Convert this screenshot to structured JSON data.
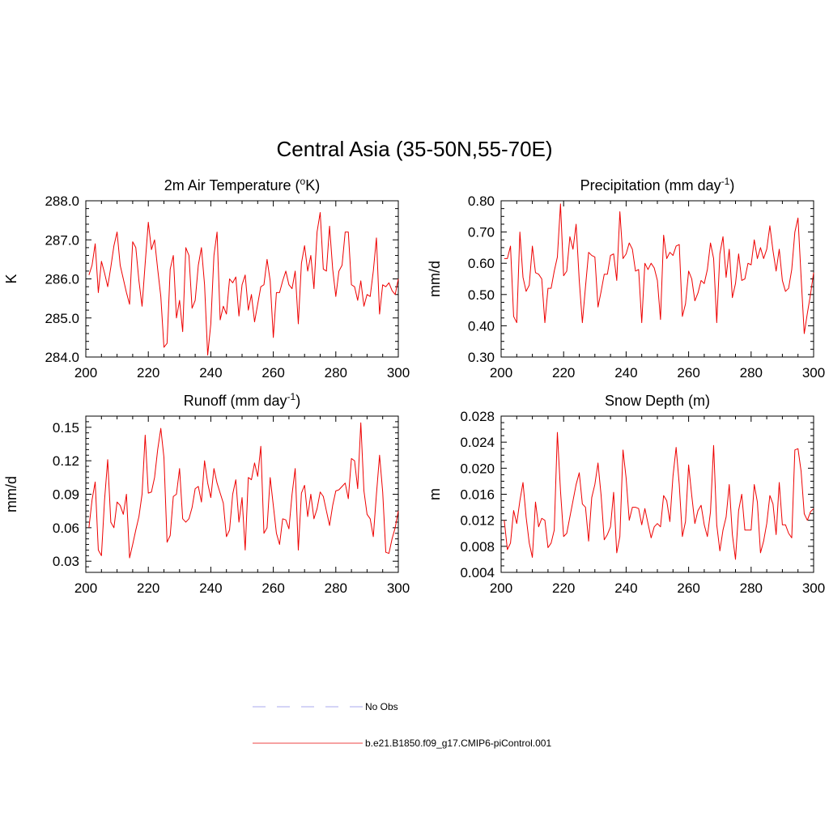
{
  "figure": {
    "title": "Central Asia (35-50N,55-70E)"
  },
  "legend": {
    "items": [
      {
        "label": "No Obs",
        "color": "#aaaaee",
        "style": "dashed"
      },
      {
        "label": "b.e21.B1850.f09_g17.CMIP6-piControl.001",
        "color": "#ee4444",
        "style": "solid"
      }
    ]
  },
  "chart_data": [
    {
      "type": "line",
      "title": "2m Air Temperature (",
      "title_sup": "o",
      "title_tail": "K)",
      "ylabel": "K",
      "xlim": [
        200,
        300
      ],
      "ylim": [
        284.0,
        288.0
      ],
      "xticks": [
        200,
        220,
        240,
        260,
        280,
        300
      ],
      "xtick_labels": [
        "200",
        "220",
        "240",
        "260",
        "280",
        "300"
      ],
      "yticks": [
        284.0,
        285.0,
        286.0,
        287.0,
        288.0
      ],
      "ytick_labels": [
        "284.0",
        "285.0",
        "286.0",
        "287.0",
        "288.0"
      ],
      "series": [
        {
          "color": "#ee0000",
          "x_start": 201,
          "values": [
            286.1,
            286.35,
            286.9,
            285.65,
            286.45,
            286.15,
            285.8,
            286.3,
            286.85,
            287.2,
            286.35,
            286.0,
            285.65,
            285.35,
            286.95,
            286.8,
            285.95,
            285.3,
            286.4,
            287.45,
            286.75,
            287.0,
            286.25,
            285.55,
            284.25,
            284.35,
            286.25,
            286.6,
            285.0,
            285.45,
            284.65,
            286.8,
            286.6,
            285.25,
            285.45,
            286.35,
            286.8,
            285.85,
            284.05,
            284.85,
            286.6,
            287.2,
            284.95,
            285.3,
            285.1,
            286.0,
            285.9,
            286.05,
            285.05,
            285.85,
            286.1,
            285.2,
            285.6,
            284.9,
            285.35,
            285.8,
            285.85,
            286.5,
            285.95,
            284.5,
            285.65,
            285.65,
            285.95,
            286.2,
            285.85,
            285.75,
            286.2,
            284.85,
            286.4,
            286.85,
            286.2,
            286.6,
            285.75,
            287.2,
            287.7,
            286.25,
            286.2,
            287.35,
            286.25,
            285.55,
            286.2,
            286.35,
            287.2,
            287.2,
            285.85,
            285.8,
            285.45,
            285.95,
            285.3,
            285.6,
            285.55,
            286.2,
            287.05,
            285.1,
            285.85,
            285.8,
            285.9,
            285.7,
            285.6,
            286.0
          ]
        }
      ]
    },
    {
      "type": "line",
      "title": "Precipitation (mm day",
      "title_sup": "-1",
      "title_tail": ")",
      "ylabel": "mm/d",
      "xlim": [
        200,
        300
      ],
      "ylim": [
        0.3,
        0.8
      ],
      "xticks": [
        200,
        220,
        240,
        260,
        280,
        300
      ],
      "xtick_labels": [
        "200",
        "220",
        "240",
        "260",
        "280",
        "300"
      ],
      "yticks": [
        0.3,
        0.4,
        0.5,
        0.6,
        0.7,
        0.8
      ],
      "ytick_labels": [
        "0.30",
        "0.40",
        "0.50",
        "0.60",
        "0.70",
        "0.80"
      ],
      "series": [
        {
          "color": "#ee0000",
          "x_start": 201,
          "values": [
            0.615,
            0.615,
            0.655,
            0.43,
            0.41,
            0.7,
            0.555,
            0.51,
            0.53,
            0.655,
            0.57,
            0.565,
            0.55,
            0.41,
            0.52,
            0.52,
            0.575,
            0.62,
            0.79,
            0.56,
            0.575,
            0.685,
            0.645,
            0.725,
            0.545,
            0.41,
            0.525,
            0.635,
            0.625,
            0.62,
            0.46,
            0.51,
            0.565,
            0.565,
            0.625,
            0.63,
            0.545,
            0.765,
            0.615,
            0.63,
            0.665,
            0.645,
            0.575,
            0.58,
            0.41,
            0.6,
            0.58,
            0.6,
            0.585,
            0.545,
            0.42,
            0.69,
            0.615,
            0.635,
            0.625,
            0.655,
            0.66,
            0.43,
            0.47,
            0.575,
            0.55,
            0.48,
            0.505,
            0.545,
            0.535,
            0.58,
            0.665,
            0.615,
            0.41,
            0.63,
            0.685,
            0.555,
            0.645,
            0.49,
            0.535,
            0.63,
            0.545,
            0.55,
            0.6,
            0.595,
            0.675,
            0.615,
            0.65,
            0.615,
            0.645,
            0.72,
            0.64,
            0.575,
            0.645,
            0.545,
            0.51,
            0.52,
            0.58,
            0.7,
            0.745,
            0.555,
            0.375,
            0.44,
            0.5,
            0.57
          ]
        }
      ]
    },
    {
      "type": "line",
      "title": "Runoff (mm day",
      "title_sup": "-1",
      "title_tail": ")",
      "ylabel": "mm/d",
      "xlim": [
        200,
        300
      ],
      "ylim": [
        0.02,
        0.16
      ],
      "xticks": [
        200,
        220,
        240,
        260,
        280,
        300
      ],
      "xtick_labels": [
        "200",
        "220",
        "240",
        "260",
        "280",
        "300"
      ],
      "yticks": [
        0.03,
        0.06,
        0.09,
        0.12,
        0.15
      ],
      "ytick_labels": [
        "0.03",
        "0.06",
        "0.09",
        "0.12",
        "0.15"
      ],
      "series": [
        {
          "color": "#ee0000",
          "x_start": 201,
          "values": [
            0.06,
            0.085,
            0.101,
            0.04,
            0.035,
            0.085,
            0.121,
            0.065,
            0.06,
            0.083,
            0.08,
            0.072,
            0.09,
            0.033,
            0.045,
            0.058,
            0.07,
            0.09,
            0.143,
            0.091,
            0.092,
            0.105,
            0.13,
            0.149,
            0.123,
            0.047,
            0.053,
            0.088,
            0.09,
            0.113,
            0.068,
            0.065,
            0.068,
            0.078,
            0.095,
            0.097,
            0.083,
            0.12,
            0.1,
            0.087,
            0.113,
            0.1,
            0.091,
            0.082,
            0.052,
            0.058,
            0.09,
            0.103,
            0.065,
            0.087,
            0.04,
            0.105,
            0.103,
            0.118,
            0.106,
            0.133,
            0.055,
            0.06,
            0.105,
            0.08,
            0.055,
            0.045,
            0.068,
            0.067,
            0.059,
            0.09,
            0.113,
            0.04,
            0.091,
            0.098,
            0.07,
            0.09,
            0.068,
            0.077,
            0.092,
            0.088,
            0.075,
            0.062,
            0.08,
            0.093,
            0.094,
            0.097,
            0.1,
            0.086,
            0.122,
            0.12,
            0.095,
            0.154,
            0.093,
            0.072,
            0.068,
            0.052,
            0.09,
            0.125,
            0.092,
            0.038,
            0.037,
            0.05,
            0.06,
            0.075
          ]
        }
      ]
    },
    {
      "type": "line",
      "title": "Snow Depth (m)",
      "title_sup": "",
      "title_tail": "",
      "ylabel": "m",
      "xlim": [
        200,
        300
      ],
      "ylim": [
        0.004,
        0.028
      ],
      "xticks": [
        200,
        220,
        240,
        260,
        280,
        300
      ],
      "xtick_labels": [
        "200",
        "220",
        "240",
        "260",
        "280",
        "300"
      ],
      "yticks": [
        0.004,
        0.008,
        0.012,
        0.016,
        0.02,
        0.024,
        0.028
      ],
      "ytick_labels": [
        "0.004",
        "0.008",
        "0.012",
        "0.016",
        "0.020",
        "0.024",
        "0.028"
      ],
      "series": [
        {
          "color": "#ee0000",
          "x_start": 201,
          "values": [
            0.012,
            0.0075,
            0.0085,
            0.0135,
            0.0115,
            0.015,
            0.0178,
            0.0125,
            0.0085,
            0.0063,
            0.0148,
            0.011,
            0.0123,
            0.012,
            0.0078,
            0.0085,
            0.0105,
            0.0255,
            0.0165,
            0.0095,
            0.01,
            0.0125,
            0.015,
            0.0175,
            0.0193,
            0.0145,
            0.014,
            0.0088,
            0.0155,
            0.0175,
            0.0208,
            0.0158,
            0.009,
            0.0098,
            0.011,
            0.0163,
            0.007,
            0.0095,
            0.0228,
            0.0185,
            0.012,
            0.014,
            0.014,
            0.0138,
            0.0113,
            0.0138,
            0.0115,
            0.0093,
            0.011,
            0.0115,
            0.011,
            0.0158,
            0.015,
            0.0118,
            0.0188,
            0.0232,
            0.0175,
            0.0095,
            0.0118,
            0.0205,
            0.0158,
            0.0115,
            0.0135,
            0.0143,
            0.0113,
            0.0095,
            0.0133,
            0.0235,
            0.0113,
            0.0073,
            0.0105,
            0.0125,
            0.0175,
            0.0098,
            0.006,
            0.0135,
            0.016,
            0.0105,
            0.0105,
            0.0105,
            0.0175,
            0.0148,
            0.007,
            0.0088,
            0.0115,
            0.0158,
            0.0145,
            0.0098,
            0.0178,
            0.0113,
            0.0113,
            0.01,
            0.0093,
            0.0228,
            0.023,
            0.0195,
            0.013,
            0.012,
            0.0133,
            0.0138
          ]
        }
      ]
    }
  ]
}
